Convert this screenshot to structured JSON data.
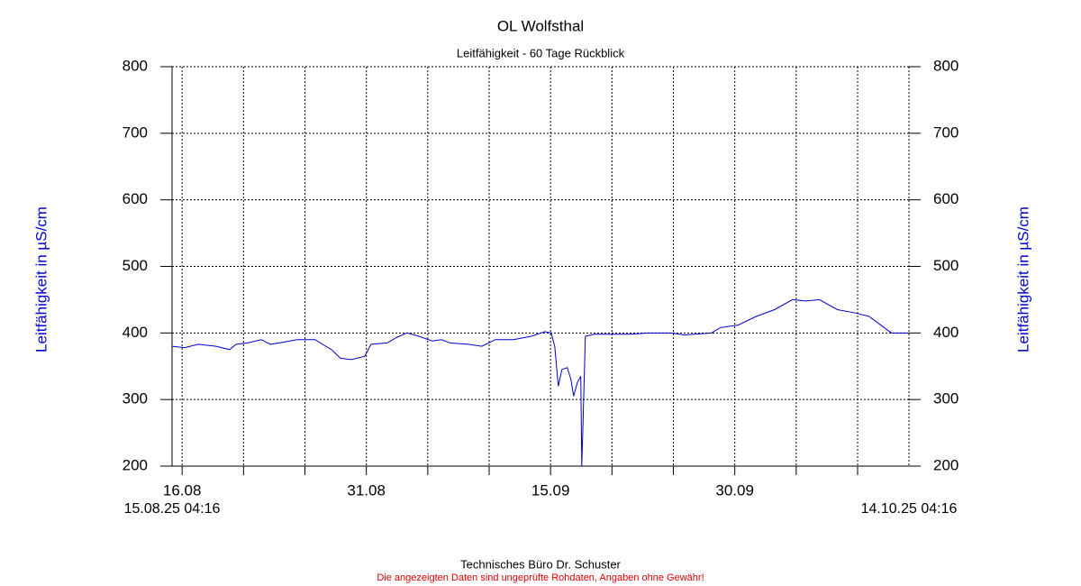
{
  "chart_data": {
    "type": "line",
    "title": "OL Wolfsthal",
    "subtitle": "Leitfähigkeit - 60 Tage Rückblick",
    "y_label": "Leitfähigkeit in µS/cm",
    "start_label": "15.08.25 04:16",
    "end_label": "14.10.25 04:16",
    "footer": "Technisches Büro Dr. Schuster",
    "disclaimer": "Die angezeigten Daten sind ungeprüfte Rohdaten, Angaben ohne Gewähr!",
    "xlim": [
      0,
      60
    ],
    "ylim": [
      200,
      800
    ],
    "yticks": [
      200,
      300,
      400,
      500,
      600,
      700,
      800
    ],
    "xticks": [
      {
        "value": 0.82,
        "label": "16.08"
      },
      {
        "value": 5.82,
        "label": null
      },
      {
        "value": 10.82,
        "label": null
      },
      {
        "value": 15.82,
        "label": "31.08"
      },
      {
        "value": 20.82,
        "label": null
      },
      {
        "value": 25.82,
        "label": null
      },
      {
        "value": 30.82,
        "label": "15.09"
      },
      {
        "value": 35.82,
        "label": null
      },
      {
        "value": 40.82,
        "label": null
      },
      {
        "value": 45.82,
        "label": "30.09"
      },
      {
        "value": 50.82,
        "label": null
      },
      {
        "value": 55.82,
        "label": null
      }
    ],
    "grid": true,
    "series": [
      {
        "name": "Leitfähigkeit",
        "color": "#0000cc",
        "x": [
          0,
          1.03,
          2.13,
          3.59,
          4.69,
          5.21,
          6.16,
          7.26,
          7.99,
          8.72,
          10.19,
          11.66,
          12.24,
          12.98,
          13.71,
          14.59,
          15.69,
          16.2,
          17.52,
          18.26,
          19.13,
          20.09,
          21.19,
          21.92,
          22.65,
          24.12,
          25.22,
          26.32,
          27.79,
          29.25,
          30.35,
          30.87,
          31.16,
          31.45,
          31.74,
          32.18,
          32.48,
          32.7,
          32.99,
          33.28,
          33.36,
          33.47,
          33.65,
          34.38,
          35.85,
          37.32,
          38.78,
          40.62,
          41.72,
          43.91,
          44.65,
          46.11,
          47.58,
          49.05,
          50.51,
          51.61,
          52.71,
          54.18,
          55.65,
          56.74,
          57.84,
          58.58,
          59.9
        ],
        "values": [
          380,
          378,
          383,
          380,
          375,
          383,
          385,
          390,
          383,
          385,
          390,
          390,
          383,
          375,
          362,
          360,
          365,
          383,
          385,
          393,
          400,
          395,
          388,
          390,
          385,
          383,
          380,
          390,
          390,
          395,
          402,
          400,
          380,
          320,
          345,
          348,
          330,
          305,
          325,
          335,
          200,
          270,
          395,
          398,
          398,
          398,
          400,
          400,
          397,
          400,
          408,
          412,
          425,
          435,
          450,
          448,
          450,
          435,
          430,
          425,
          410,
          400,
          400
        ]
      }
    ]
  }
}
